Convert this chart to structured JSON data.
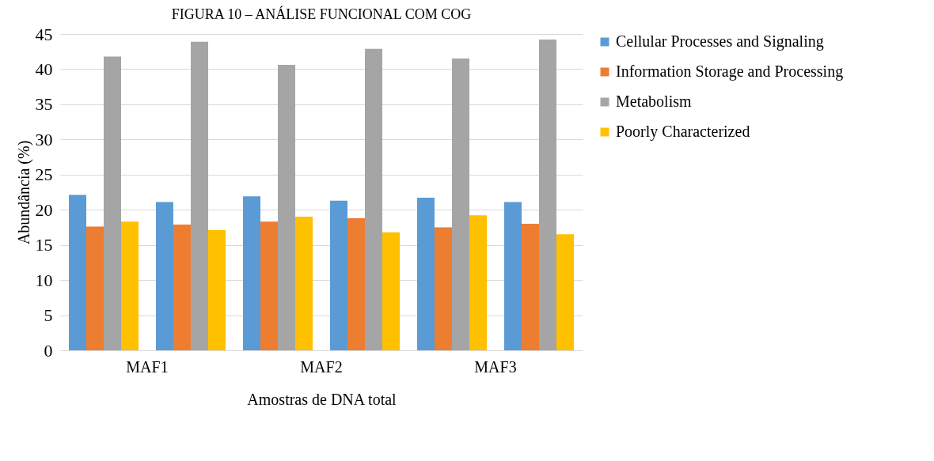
{
  "chart_data": {
    "type": "bar",
    "title": "FIGURA 10 – ANÁLISE FUNCIONAL COM COG",
    "xlabel": "Amostras de DNA total",
    "ylabel": "Abundância (%)",
    "categories": [
      null,
      null,
      null,
      null,
      null,
      null
    ],
    "annotations": [
      "MAF1",
      "MAF2",
      "MAF3"
    ],
    "series": [
      {
        "name": "Cellular Processes and Signaling",
        "color": "#5b9bd5",
        "values": [
          22.1,
          21.1,
          21.9,
          21.3,
          21.7,
          21.1
        ]
      },
      {
        "name": "Information Storage and Processing",
        "color": "#ed7d31",
        "values": [
          17.6,
          17.9,
          18.3,
          18.8,
          17.5,
          18.0
        ]
      },
      {
        "name": "Metabolism",
        "color": "#a5a5a5",
        "values": [
          41.8,
          43.9,
          40.6,
          42.9,
          41.5,
          44.2
        ]
      },
      {
        "name": "Poorly Characterized",
        "color": "#ffc000",
        "values": [
          18.3,
          17.1,
          19.0,
          16.8,
          19.2,
          16.5
        ]
      }
    ],
    "ylim": [
      0,
      45
    ],
    "yticks": [
      0,
      5,
      10,
      15,
      20,
      25,
      30,
      35,
      40,
      45
    ],
    "grid": "y",
    "legend": "right"
  }
}
